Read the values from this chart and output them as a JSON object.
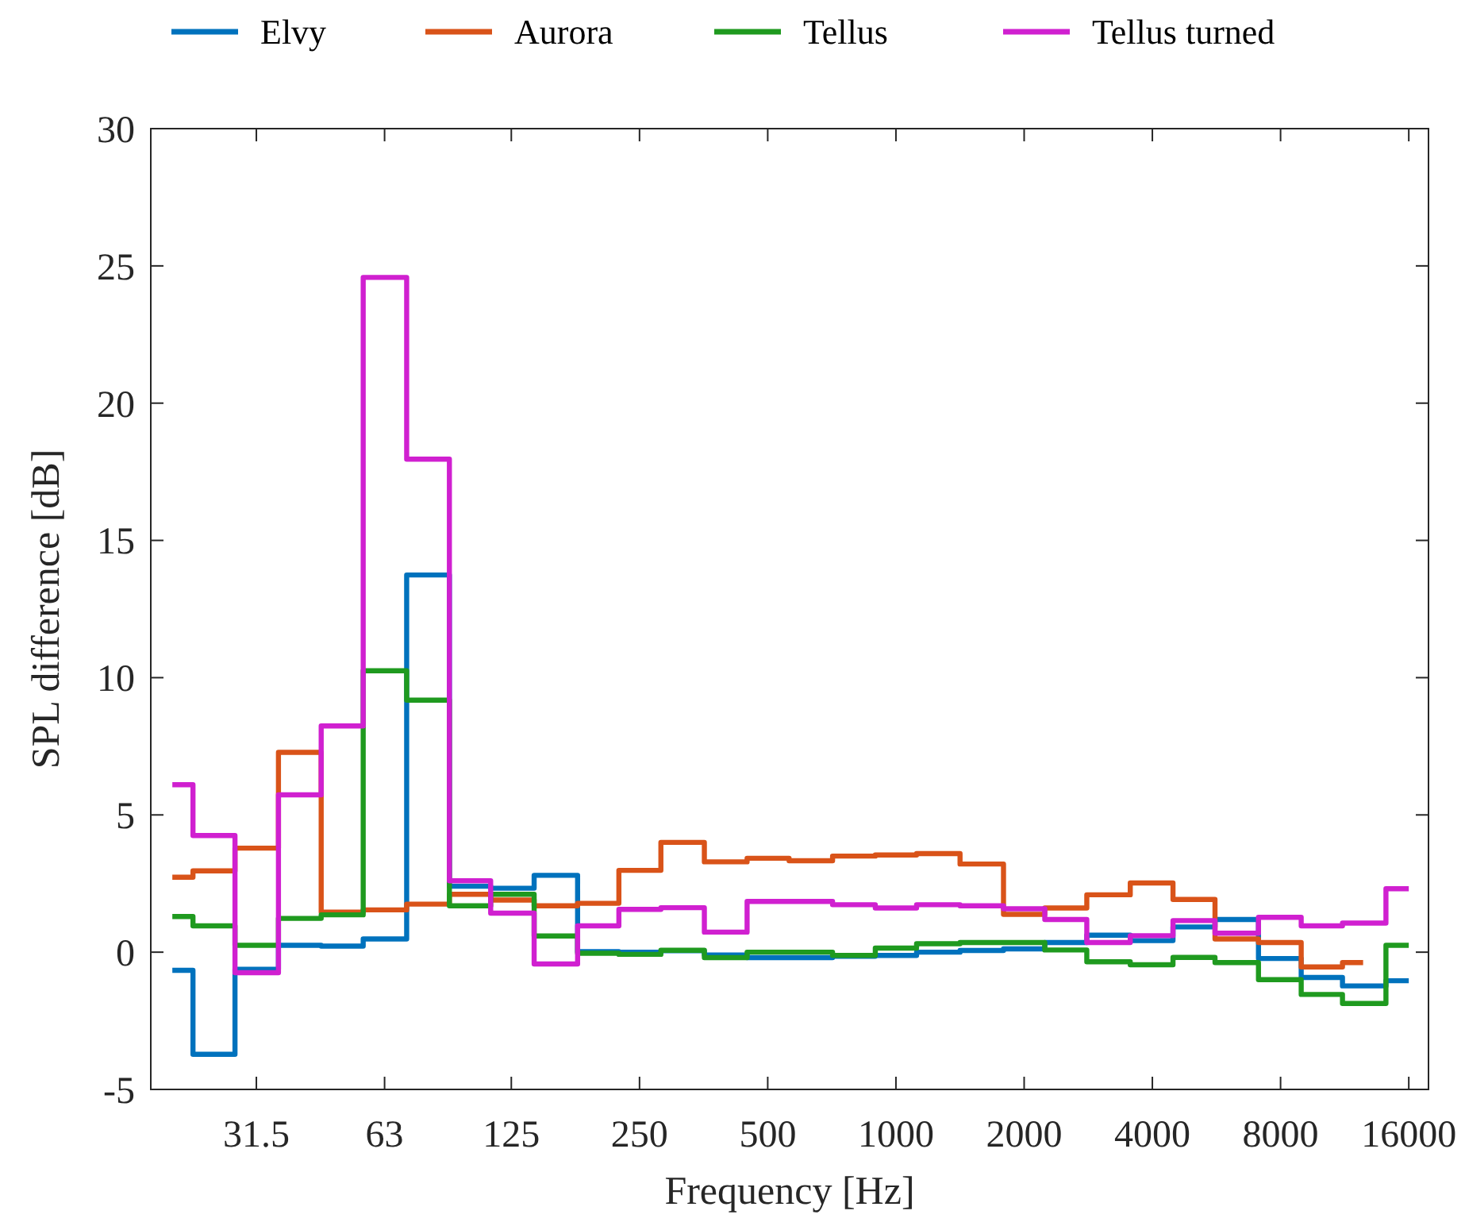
{
  "chart_data": {
    "type": "step",
    "xlabel": "Frequency [Hz]",
    "ylabel": "SPL difference [dB]",
    "log": "x",
    "grid": false,
    "legend": "top",
    "marker": "none",
    "line_style": "solid",
    "x": [
      20,
      25,
      31.5,
      40,
      50,
      63,
      80,
      100,
      125,
      160,
      200,
      250,
      315,
      400,
      500,
      630,
      800,
      1000,
      1250,
      1600,
      2000,
      2500,
      3150,
      4000,
      5000,
      6300,
      8000,
      10000,
      12500,
      16000
    ],
    "xlim": [
      17.8,
      17800
    ],
    "xticks": [
      31.5,
      63,
      125,
      250,
      500,
      1000,
      2000,
      4000,
      8000,
      16000
    ],
    "ylim": [
      -5,
      30
    ],
    "yticks": [
      -5,
      0,
      5,
      10,
      15,
      20,
      25,
      30
    ],
    "series": [
      {
        "name": "Elvy",
        "color": "#0072bd",
        "values": [
          -0.66,
          -3.72,
          -0.62,
          0.25,
          0.22,
          0.48,
          13.74,
          2.4,
          2.33,
          2.8,
          0.02,
          0,
          0.05,
          -0.1,
          -0.2,
          -0.2,
          -0.15,
          -0.12,
          0,
          0.06,
          0.12,
          0.35,
          0.62,
          0.42,
          0.92,
          1.19,
          -0.23,
          -0.92,
          -1.23,
          -1.04
        ]
      },
      {
        "name": "Aurora",
        "color": "#d95319",
        "values": [
          2.73,
          2.96,
          3.79,
          7.28,
          1.46,
          1.54,
          1.75,
          2.11,
          1.9,
          1.69,
          1.78,
          2.98,
          4.0,
          3.29,
          3.42,
          3.33,
          3.5,
          3.54,
          3.59,
          3.21,
          1.38,
          1.61,
          2.09,
          2.52,
          1.92,
          0.48,
          0.35,
          -0.54,
          -0.38,
          null
        ]
      },
      {
        "name": "Tellus",
        "color": "#1f9a1f",
        "values": [
          1.3,
          0.96,
          0.25,
          1.23,
          1.36,
          10.25,
          9.18,
          1.69,
          2.11,
          0.59,
          -0.04,
          -0.08,
          0.07,
          -0.2,
          0,
          0,
          -0.12,
          0.15,
          0.31,
          0.35,
          0.35,
          0.08,
          -0.35,
          -0.46,
          -0.19,
          -0.38,
          -1.0,
          -1.54,
          -1.87,
          0.25
        ]
      },
      {
        "name": "Tellus turned",
        "color": "#d020d0",
        "values": [
          6.1,
          4.25,
          -0.75,
          5.73,
          8.24,
          24.58,
          17.96,
          2.6,
          1.42,
          -0.43,
          0.96,
          1.56,
          1.62,
          0.73,
          1.85,
          1.85,
          1.73,
          1.61,
          1.73,
          1.69,
          1.58,
          1.19,
          0.35,
          0.6,
          1.15,
          0.69,
          1.27,
          0.96,
          1.06,
          2.31
        ]
      }
    ]
  }
}
